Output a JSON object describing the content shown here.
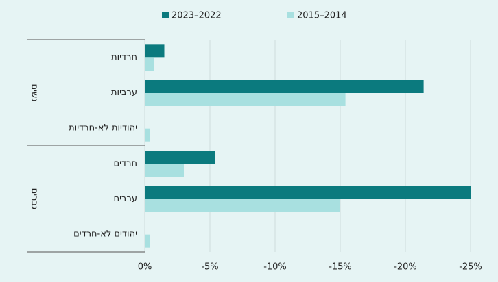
{
  "chart_data": {
    "type": "hbar",
    "categories": [
      "חרדיות",
      "ערביות",
      "יהודיות לא-חרדיות",
      "חרדים",
      "ערבים",
      "יהודים לא-חרדים"
    ],
    "groups": [
      "נשים",
      "גברים"
    ],
    "series": [
      {
        "name": "2023–2022",
        "color": "#0b7a7e",
        "values": [
          -1.5,
          -21.4,
          0,
          -5.4,
          -25.0,
          0
        ]
      },
      {
        "name": "2015–2014",
        "color": "#a8e0e0",
        "values": [
          -0.7,
          -15.4,
          -0.4,
          -3.0,
          -15.0,
          -0.4
        ]
      }
    ],
    "xlim": [
      0,
      -25
    ],
    "xticks": [
      {
        "value": 0,
        "label": "0%"
      },
      {
        "value": -5,
        "label": "-5%"
      },
      {
        "value": -10,
        "label": "-10%"
      },
      {
        "value": -15,
        "label": "-15%"
      },
      {
        "value": -20,
        "label": "-20%"
      },
      {
        "value": -25,
        "label": "-25%"
      }
    ],
    "grid": true,
    "legend": "top"
  }
}
